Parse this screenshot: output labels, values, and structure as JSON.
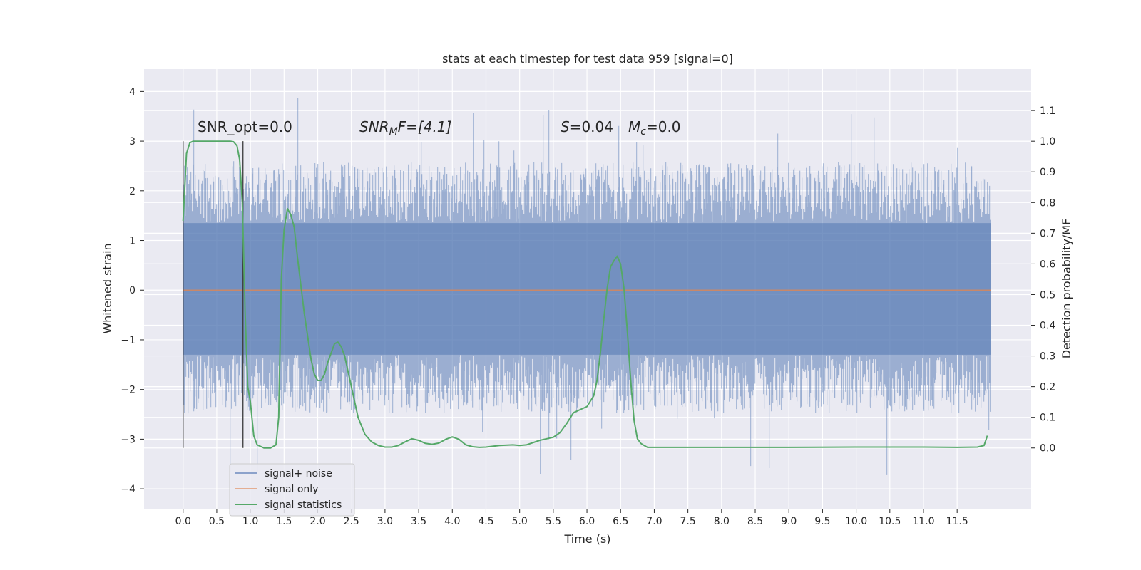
{
  "chart_data": {
    "type": "line",
    "title": "stats at each timestep for test data 959 [signal=0]",
    "xlabel": "Time (s)",
    "ylabel": "Whitened strain",
    "y2label": "Detection probability/MF",
    "xlim": [
      -0.58,
      12.6
    ],
    "ylim": [
      -4.4,
      4.45
    ],
    "y2lim": [
      -0.198,
      1.235
    ],
    "x_ticks": [
      "0.0",
      "0.5",
      "1.0",
      "1.5",
      "2.0",
      "2.5",
      "3.0",
      "3.5",
      "4.0",
      "4.5",
      "5.0",
      "5.5",
      "6.0",
      "6.5",
      "7.0",
      "7.5",
      "8.0",
      "8.5",
      "9.0",
      "9.5",
      "10.0",
      "10.5",
      "11.0",
      "11.5"
    ],
    "y_ticks": [
      "4",
      "3",
      "2",
      "1",
      "0",
      "−1",
      "−2",
      "−3",
      "−4"
    ],
    "y2_ticks": [
      "1.1",
      "1.0",
      "0.9",
      "0.8",
      "0.7",
      "0.6",
      "0.5",
      "0.4",
      "0.3",
      "0.2",
      "0.1",
      "0.0"
    ],
    "grid": true,
    "legend_position": "lower-left",
    "annotations": {
      "snr_opt": "SNR_opt=0.0",
      "snr_mf_var": "SNR",
      "snr_mf_sub": "M",
      "snr_mf_rest": "F=[4.1]",
      "s_var": "S",
      "s_rest": "=0.04",
      "mc_var": "M",
      "mc_sub": "c",
      "mc_rest": "=0.0"
    },
    "vertical_markers_x": [
      0.0,
      0.89
    ],
    "series": [
      {
        "name": "signal+ noise",
        "color": "#4c72b0",
        "axis": "left",
        "envelope": {
          "x": [
            0.0,
            12.0
          ],
          "dense_upper": 1.35,
          "dense_lower": -1.3,
          "typical_upper": 2.6,
          "typical_lower": -2.5,
          "peak_upper": 4.1,
          "peak_lower": -3.9
        }
      },
      {
        "name": "signal only",
        "color": "#dd8452",
        "axis": "left",
        "x": [
          0.0,
          12.0
        ],
        "y": [
          0.0,
          0.0
        ]
      },
      {
        "name": "signal statistics",
        "color": "#55a868",
        "axis": "right",
        "x": [
          0.0,
          0.05,
          0.1,
          0.15,
          0.2,
          0.3,
          0.5,
          0.7,
          0.75,
          0.8,
          0.84,
          0.88,
          0.92,
          0.96,
          1.0,
          1.05,
          1.1,
          1.2,
          1.3,
          1.38,
          1.42,
          1.46,
          1.5,
          1.55,
          1.6,
          1.65,
          1.7,
          1.8,
          1.9,
          1.95,
          2.0,
          2.05,
          2.1,
          2.15,
          2.2,
          2.25,
          2.3,
          2.35,
          2.4,
          2.5,
          2.6,
          2.7,
          2.8,
          2.9,
          3.0,
          3.1,
          3.2,
          3.3,
          3.4,
          3.5,
          3.6,
          3.7,
          3.8,
          3.9,
          4.0,
          4.1,
          4.2,
          4.3,
          4.4,
          4.5,
          4.7,
          4.9,
          5.0,
          5.1,
          5.3,
          5.5,
          5.6,
          5.7,
          5.8,
          5.9,
          6.0,
          6.1,
          6.15,
          6.2,
          6.25,
          6.3,
          6.35,
          6.4,
          6.45,
          6.5,
          6.55,
          6.6,
          6.65,
          6.7,
          6.75,
          6.8,
          6.85,
          6.9,
          7.0,
          7.5,
          8.0,
          9.0,
          10.0,
          10.5,
          11.0,
          11.5,
          11.8,
          11.9,
          11.95
        ],
        "y": [
          0.74,
          0.96,
          0.995,
          1.0,
          1.0,
          1.0,
          1.0,
          1.0,
          0.998,
          0.985,
          0.94,
          0.8,
          0.45,
          0.2,
          0.15,
          0.04,
          0.01,
          0.0,
          0.0,
          0.01,
          0.1,
          0.55,
          0.71,
          0.78,
          0.76,
          0.72,
          0.62,
          0.44,
          0.29,
          0.24,
          0.22,
          0.22,
          0.24,
          0.28,
          0.31,
          0.34,
          0.345,
          0.33,
          0.3,
          0.2,
          0.1,
          0.045,
          0.02,
          0.008,
          0.003,
          0.003,
          0.008,
          0.02,
          0.03,
          0.025,
          0.015,
          0.012,
          0.016,
          0.028,
          0.036,
          0.028,
          0.01,
          0.004,
          0.002,
          0.003,
          0.008,
          0.01,
          0.008,
          0.01,
          0.025,
          0.035,
          0.05,
          0.08,
          0.115,
          0.125,
          0.135,
          0.17,
          0.22,
          0.31,
          0.42,
          0.52,
          0.59,
          0.61,
          0.625,
          0.6,
          0.52,
          0.38,
          0.22,
          0.09,
          0.03,
          0.015,
          0.008,
          0.002,
          0.002,
          0.002,
          0.002,
          0.002,
          0.003,
          0.003,
          0.003,
          0.002,
          0.003,
          0.008,
          0.04
        ]
      }
    ]
  }
}
